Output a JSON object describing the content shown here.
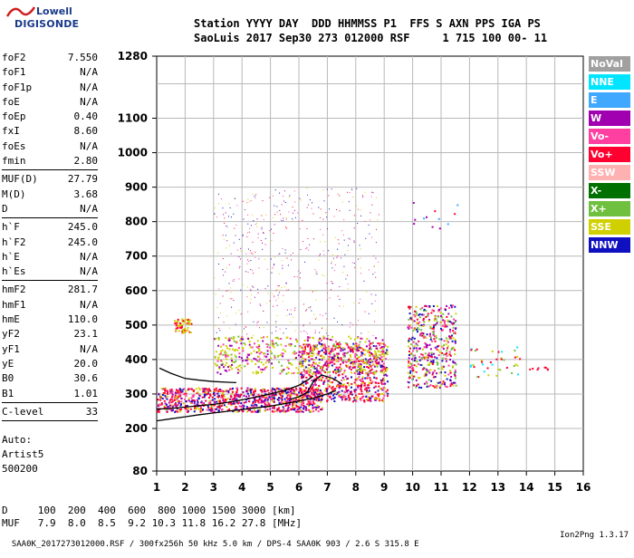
{
  "logo": {
    "line1": "Lowell",
    "line2": "DIGISONDE"
  },
  "header": {
    "line1": "Station YYYY DAY  DDD HHMMSS P1  FFS S AXN PPS IGA PS",
    "line2": "SaoLuis 2017 Sep30 273 012000 RSF     1 715 100 00- 11"
  },
  "params_groups": [
    [
      [
        "foF2",
        "7.550"
      ],
      [
        "foF1",
        "N/A"
      ],
      [
        "foF1p",
        "N/A"
      ],
      [
        "foE",
        "N/A"
      ],
      [
        "foEp",
        "0.40"
      ],
      [
        "fxI",
        "8.60"
      ],
      [
        "foEs",
        "N/A"
      ],
      [
        "fmin",
        "2.80"
      ]
    ],
    [
      [
        "MUF(D)",
        "27.79"
      ],
      [
        "M(D)",
        "3.68"
      ],
      [
        "D",
        "N/A"
      ]
    ],
    [
      [
        "h`F",
        "245.0"
      ],
      [
        "h`F2",
        "245.0"
      ],
      [
        "h`E",
        "N/A"
      ],
      [
        "h`Es",
        "N/A"
      ]
    ],
    [
      [
        "hmF2",
        "281.7"
      ],
      [
        "hmF1",
        "N/A"
      ],
      [
        "hmE",
        "110.0"
      ],
      [
        "yF2",
        "23.1"
      ],
      [
        "yF1",
        "N/A"
      ],
      [
        "yE",
        "20.0"
      ],
      [
        "B0",
        "30.6"
      ],
      [
        "B1",
        "1.01"
      ]
    ],
    [
      [
        "C-level",
        "33"
      ]
    ]
  ],
  "auto_lines": [
    "Auto:",
    "Artist5",
    "500200"
  ],
  "legend": [
    {
      "label": "NoVal",
      "color": "#a0a0a0"
    },
    {
      "label": "NNE",
      "color": "#00e5ff"
    },
    {
      "label": "E",
      "color": "#40a8ff"
    },
    {
      "label": "W",
      "color": "#a000b0"
    },
    {
      "label": "Vo-",
      "color": "#ff40a0"
    },
    {
      "label": "Vo+",
      "color": "#ff0030"
    },
    {
      "label": "SSW",
      "color": "#ffb0b0"
    },
    {
      "label": "X-",
      "color": "#007000"
    },
    {
      "label": "X+",
      "color": "#70c040"
    },
    {
      "label": "SSE",
      "color": "#d0d000"
    },
    {
      "label": "NNW",
      "color": "#1010c0"
    }
  ],
  "muf_table": {
    "d_label": "D",
    "d_values": [
      "100",
      "200",
      "400",
      "600",
      "800",
      "1000",
      "1500",
      "3000"
    ],
    "d_unit": "[km]",
    "muf_label": "MUF",
    "muf_values": [
      "7.9",
      "8.0",
      "8.5",
      "9.2",
      "10.3",
      "11.8",
      "16.2",
      "27.8"
    ],
    "muf_unit": "[MHz]"
  },
  "footer": {
    "left": "SAA0K_2017273012000.RSF / 300fx256h 50 kHz 5.0 km / DPS-4 SAA0K 903 / 2.6 S 315.8 E",
    "right": "Ion2Png 1.3.17"
  },
  "chart_data": {
    "type": "scatter",
    "title": "",
    "xlabel": "",
    "ylabel": "",
    "x_ticks": [
      1,
      2,
      3,
      4,
      5,
      6,
      7,
      8,
      9,
      10,
      11,
      12,
      13,
      14,
      15,
      16
    ],
    "y_ticks": [
      80,
      200,
      300,
      400,
      500,
      600,
      700,
      800,
      900,
      1000,
      1100,
      1280
    ],
    "xlim": [
      1,
      16
    ],
    "ylim": [
      80,
      1280
    ],
    "y_scale": "ionogram",
    "grid": true,
    "traces": [
      {
        "name": "profile",
        "color": "#000000",
        "points": [
          [
            1.0,
            222
          ],
          [
            1.5,
            228
          ],
          [
            2.0,
            234
          ],
          [
            2.5,
            240
          ],
          [
            3.0,
            245
          ],
          [
            3.5,
            250
          ],
          [
            4.0,
            255
          ],
          [
            4.5,
            260
          ],
          [
            5.0,
            265
          ],
          [
            5.5,
            272
          ],
          [
            6.0,
            280
          ],
          [
            6.5,
            288
          ],
          [
            7.0,
            300
          ],
          [
            7.3,
            310
          ]
        ]
      },
      {
        "name": "trace",
        "color": "#000000",
        "points": [
          [
            1.0,
            256
          ],
          [
            1.5,
            258
          ],
          [
            2.0,
            262
          ],
          [
            2.5,
            266
          ],
          [
            3.0,
            270
          ],
          [
            3.5,
            276
          ],
          [
            4.0,
            283
          ],
          [
            4.5,
            291
          ],
          [
            5.0,
            300
          ],
          [
            5.5,
            310
          ],
          [
            6.0,
            325
          ],
          [
            6.3,
            340
          ],
          [
            6.5,
            352
          ]
        ]
      },
      {
        "name": "trace-2",
        "color": "#000000",
        "points": [
          [
            1.1,
            375
          ],
          [
            1.5,
            360
          ],
          [
            2.0,
            345
          ],
          [
            2.5,
            340
          ],
          [
            3.0,
            336
          ],
          [
            3.5,
            334
          ],
          [
            3.8,
            333
          ]
        ]
      },
      {
        "name": "trace-3",
        "color": "#000000",
        "points": [
          [
            5.7,
            285
          ],
          [
            6.0,
            292
          ],
          [
            6.3,
            305
          ],
          [
            6.5,
            335
          ],
          [
            6.8,
            355
          ],
          [
            7.2,
            345
          ],
          [
            7.5,
            330
          ]
        ]
      }
    ]
  }
}
